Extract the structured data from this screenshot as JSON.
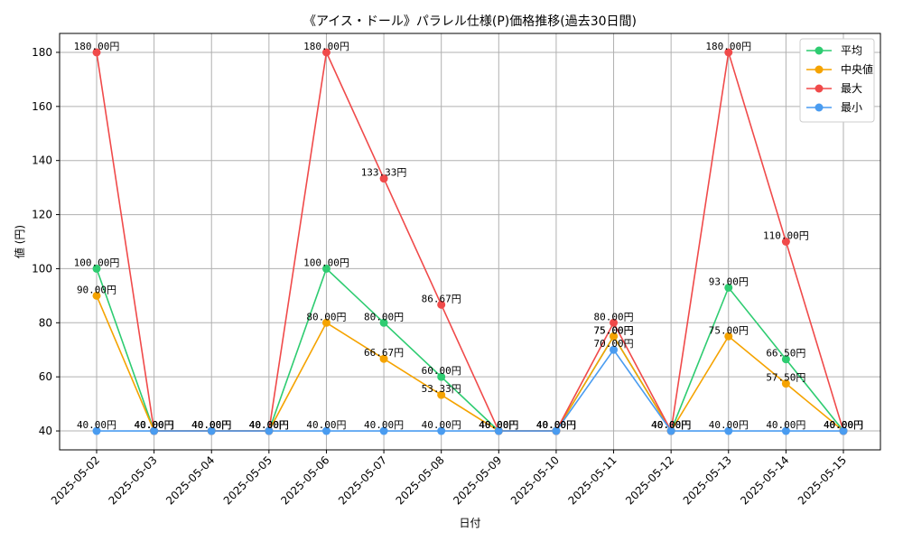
{
  "chart_data": {
    "type": "line",
    "title": "《アイス・ドール》パラレル仕様(P)価格推移(過去30日間)",
    "xlabel": "日付",
    "ylabel": "値 (円)",
    "ylim": [
      33,
      187
    ],
    "yticks": [
      40,
      60,
      80,
      100,
      120,
      140,
      160,
      180
    ],
    "grid": true,
    "legend_position": "top-right",
    "label_suffix": "円",
    "categories": [
      "2025-05-02",
      "2025-05-03",
      "2025-05-04",
      "2025-05-05",
      "2025-05-06",
      "2025-05-07",
      "2025-05-08",
      "2025-05-09",
      "2025-05-10",
      "2025-05-11",
      "2025-05-12",
      "2025-05-13",
      "2025-05-14",
      "2025-05-15"
    ],
    "series": [
      {
        "name": "平均",
        "color": "#2ecc71",
        "values": [
          100.0,
          40.0,
          40.0,
          40.0,
          100.0,
          80.0,
          60.0,
          40.0,
          40.0,
          75.0,
          40.0,
          93.0,
          66.5,
          40.0
        ]
      },
      {
        "name": "中央値",
        "color": "#f5a300",
        "values": [
          90.0,
          40.0,
          40.0,
          40.0,
          80.0,
          66.67,
          53.33,
          40.0,
          40.0,
          75.0,
          40.0,
          75.0,
          57.5,
          40.0
        ]
      },
      {
        "name": "最大",
        "color": "#f04a4a",
        "values": [
          180.0,
          40.0,
          40.0,
          40.0,
          180.0,
          133.33,
          86.67,
          40.0,
          40.0,
          80.0,
          40.0,
          180.0,
          110.0,
          40.0
        ]
      },
      {
        "name": "最小",
        "color": "#4a9cf0",
        "values": [
          40.0,
          40.0,
          40.0,
          40.0,
          40.0,
          40.0,
          40.0,
          40.0,
          40.0,
          70.0,
          40.0,
          40.0,
          40.0,
          40.0
        ]
      }
    ]
  }
}
